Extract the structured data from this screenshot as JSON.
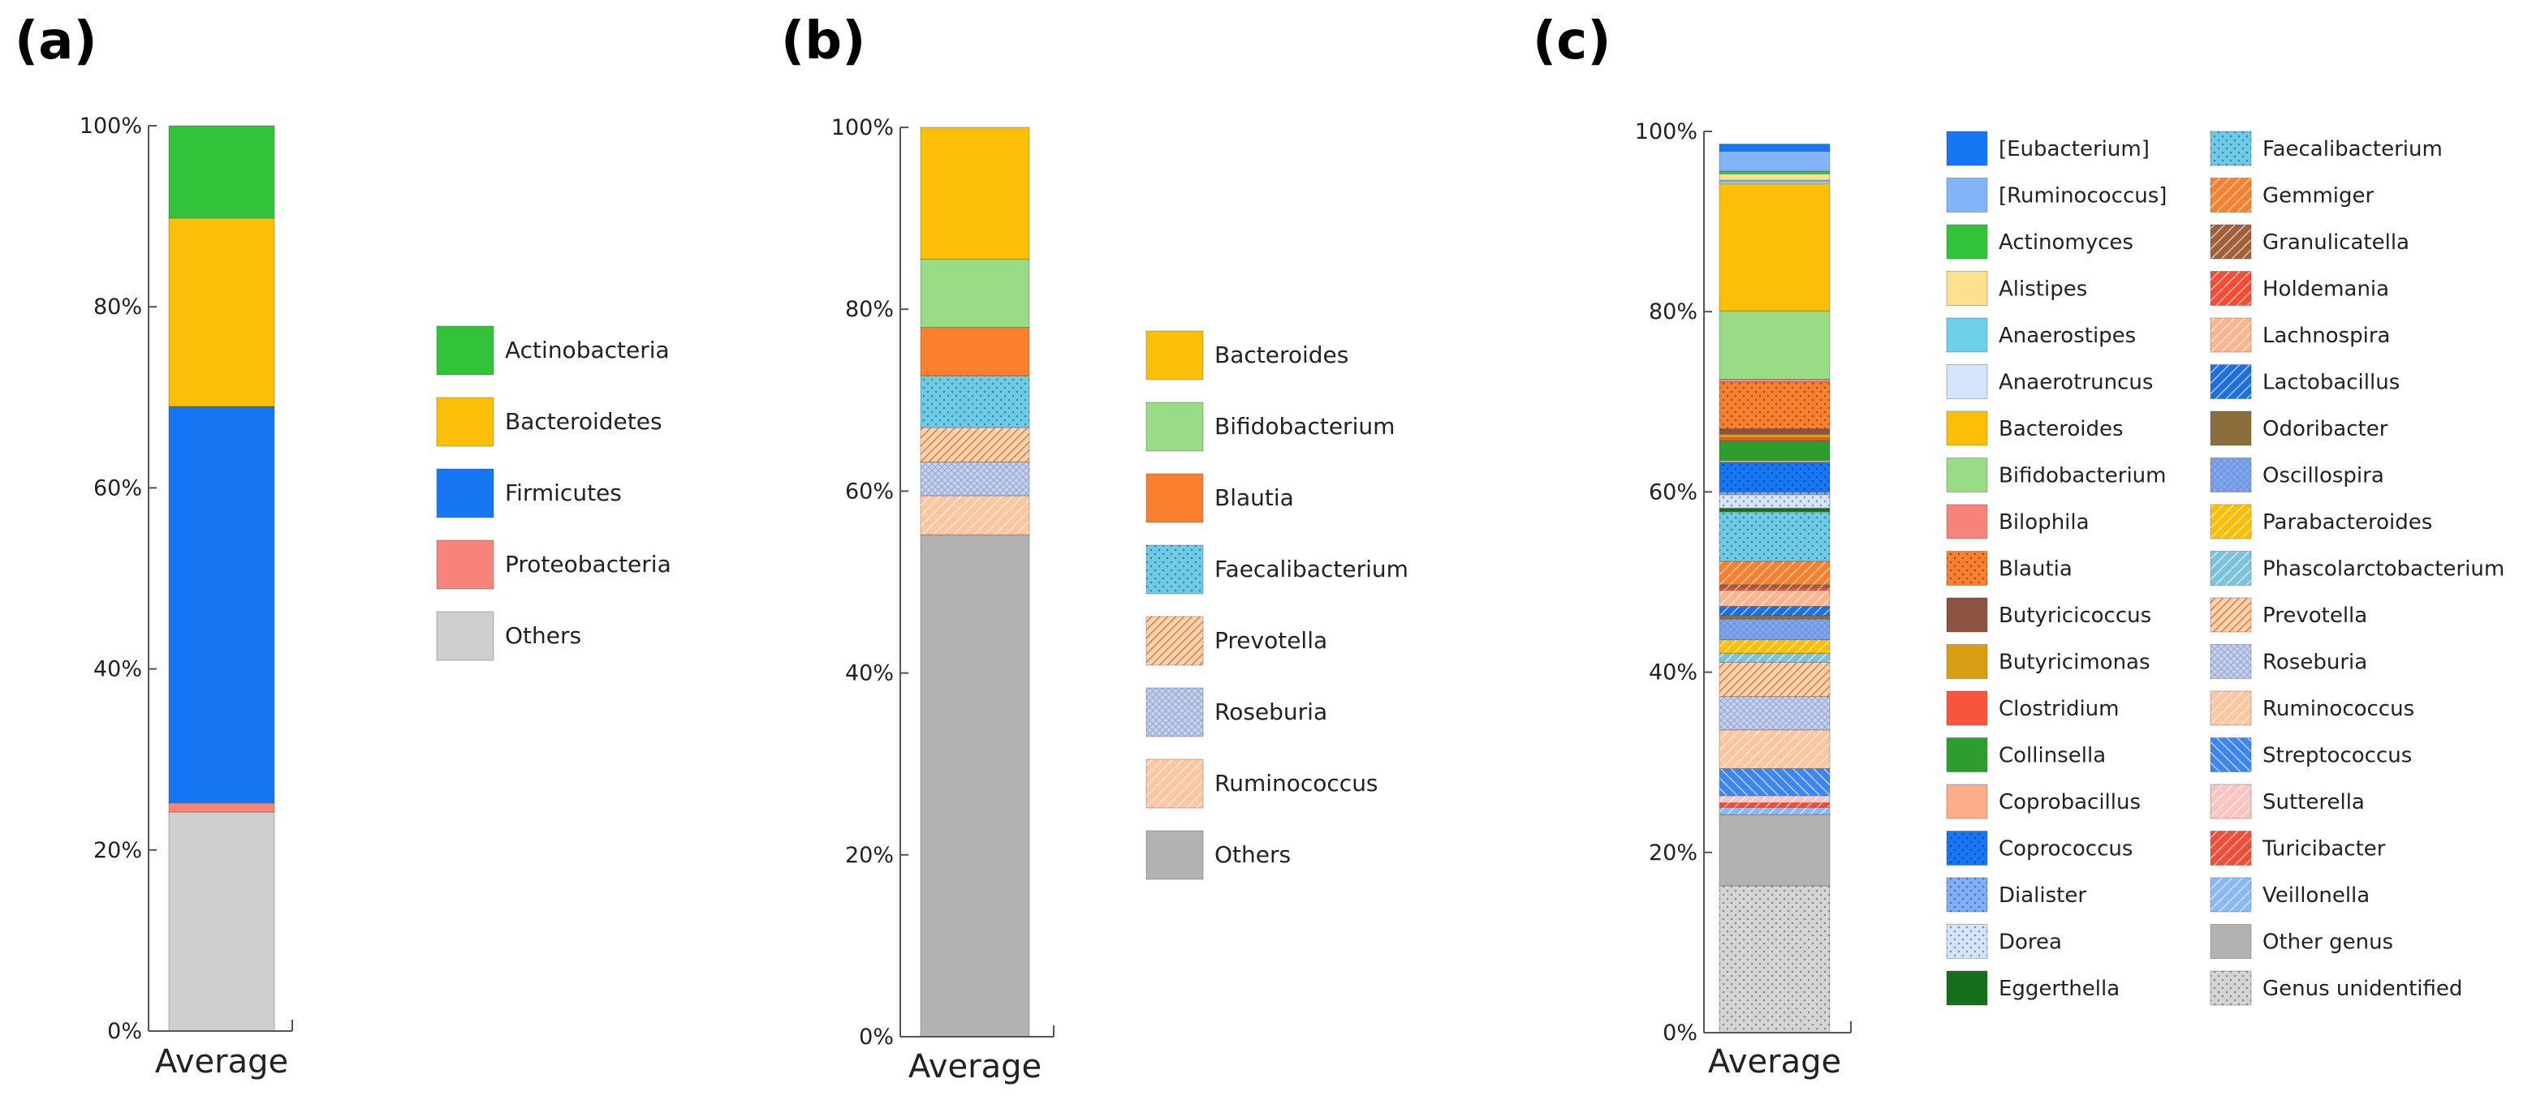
{
  "chart_data": [
    {
      "panel_label": "(a)",
      "type": "bar",
      "stacked": true,
      "normalized_percent": true,
      "categories": [
        "Average"
      ],
      "ylim": [
        0,
        100
      ],
      "yticks": [
        "0%",
        "20%",
        "40%",
        "60%",
        "80%",
        "100%"
      ],
      "legend_position": "right",
      "series": [
        {
          "name": "Actinobacteria",
          "values": [
            10.2
          ],
          "color": "#33c33a",
          "pattern": "solid"
        },
        {
          "name": "Bacteroidetes",
          "values": [
            20.8
          ],
          "color": "#fbbf08",
          "pattern": "solid"
        },
        {
          "name": "Firmicutes",
          "values": [
            43.8
          ],
          "color": "#1577f4",
          "pattern": "solid"
        },
        {
          "name": "Proteobacteria",
          "values": [
            1.0
          ],
          "color": "#f7847a",
          "pattern": "solid"
        },
        {
          "name": "Others",
          "values": [
            24.2
          ],
          "color": "#cfcfcf",
          "pattern": "solid"
        }
      ]
    },
    {
      "panel_label": "(b)",
      "type": "bar",
      "stacked": true,
      "normalized_percent": true,
      "categories": [
        "Average"
      ],
      "ylim": [
        0,
        100
      ],
      "yticks": [
        "0%",
        "20%",
        "40%",
        "60%",
        "80%",
        "100%"
      ],
      "legend_position": "right",
      "series": [
        {
          "name": "Bacteroides",
          "values": [
            14.5
          ],
          "color": "#fbbf08",
          "pattern": "solid"
        },
        {
          "name": "Bifidobacterium",
          "values": [
            7.5
          ],
          "color": "#99dc85",
          "pattern": "solid"
        },
        {
          "name": "Blautia",
          "values": [
            5.3
          ],
          "color": "#f8802f",
          "pattern": "solid"
        },
        {
          "name": "Faecalibacterium",
          "values": [
            5.7
          ],
          "color": "#6dcbe8",
          "pattern": "dots"
        },
        {
          "name": "Prevotella",
          "values": [
            3.8
          ],
          "color": "#fbd3b0",
          "pattern": "hatch-dense"
        },
        {
          "name": "Roseburia",
          "values": [
            3.7
          ],
          "color": "#c4d0ec",
          "pattern": "crosshatch"
        },
        {
          "name": "Ruminococcus",
          "values": [
            4.3
          ],
          "color": "#fbc6a0",
          "pattern": "hatch"
        },
        {
          "name": "Others",
          "values": [
            55.2
          ],
          "color": "#b2b2b2",
          "pattern": "solid"
        }
      ]
    },
    {
      "panel_label": "(c)",
      "type": "bar",
      "stacked": true,
      "normalized_percent": true,
      "categories": [
        "Average"
      ],
      "ylim": [
        0,
        100
      ],
      "yticks": [
        "0%",
        "20%",
        "40%",
        "60%",
        "80%",
        "100%"
      ],
      "legend_position": "right",
      "series": [
        {
          "name": "[Eubacterium]",
          "values": [
            0.8
          ],
          "color": "#1577f4",
          "pattern": "solid"
        },
        {
          "name": "[Ruminococcus]",
          "values": [
            2.2
          ],
          "color": "#82b4f7",
          "pattern": "solid"
        },
        {
          "name": "Actinomyces",
          "values": [
            0.3
          ],
          "color": "#33c33a",
          "pattern": "solid"
        },
        {
          "name": "Alistipes",
          "values": [
            0.7
          ],
          "color": "#ffe08f",
          "pattern": "solid"
        },
        {
          "name": "Anaerostipes",
          "values": [
            0.2
          ],
          "color": "#6fd0ea",
          "pattern": "solid"
        },
        {
          "name": "Anaerotruncus",
          "values": [
            0.2
          ],
          "color": "#d3e4fb",
          "pattern": "solid"
        },
        {
          "name": "Bacteroides",
          "values": [
            14.1
          ],
          "color": "#fbbf08",
          "pattern": "solid"
        },
        {
          "name": "Bifidobacterium",
          "values": [
            7.6
          ],
          "color": "#99dc85",
          "pattern": "solid"
        },
        {
          "name": "Bilophila",
          "values": [
            0.3
          ],
          "color": "#f7847a",
          "pattern": "solid"
        },
        {
          "name": "Blautia",
          "values": [
            5.2
          ],
          "color": "#f8802f",
          "pattern": "dots"
        },
        {
          "name": "Butyricicoccus",
          "values": [
            0.6
          ],
          "color": "#8b5340",
          "pattern": "solid"
        },
        {
          "name": "Butyricimonas",
          "values": [
            0.4
          ],
          "color": "#d99e14",
          "pattern": "solid"
        },
        {
          "name": "Clostridium",
          "values": [
            0.3
          ],
          "color": "#f8553e",
          "pattern": "solid"
        },
        {
          "name": "Collinsella",
          "values": [
            2.2
          ],
          "color": "#2e9c2f",
          "pattern": "solid"
        },
        {
          "name": "Coprobacillus",
          "values": [
            0.2
          ],
          "color": "#fbae88",
          "pattern": "solid"
        },
        {
          "name": "Coprococcus",
          "values": [
            3.3
          ],
          "color": "#1577f4",
          "pattern": "dots"
        },
        {
          "name": "Dialister",
          "values": [
            0.3
          ],
          "color": "#7fb0f6",
          "pattern": "dots"
        },
        {
          "name": "Dorea",
          "values": [
            1.5
          ],
          "color": "#d3e4fb",
          "pattern": "dots"
        },
        {
          "name": "Eggerthella",
          "values": [
            0.4
          ],
          "color": "#176e1c",
          "pattern": "solid"
        },
        {
          "name": "Faecalibacterium",
          "values": [
            5.5
          ],
          "color": "#6dcbe8",
          "pattern": "dots"
        },
        {
          "name": "Gemmiger",
          "values": [
            2.6
          ],
          "color": "#f8802f",
          "pattern": "hatch"
        },
        {
          "name": "Granulicatella",
          "values": [
            0.3
          ],
          "color": "#a0603a",
          "pattern": "hatch"
        },
        {
          "name": "Holdemania",
          "values": [
            0.3
          ],
          "color": "#f54d35",
          "pattern": "hatch"
        },
        {
          "name": "Lachnospira",
          "values": [
            1.8
          ],
          "color": "#fbb690",
          "pattern": "hatch"
        },
        {
          "name": "Lactobacillus",
          "values": [
            1.0
          ],
          "color": "#1e6fe0",
          "pattern": "hatch"
        },
        {
          "name": "Odoribacter",
          "values": [
            0.4
          ],
          "color": "#8a6d3b",
          "pattern": "solid"
        },
        {
          "name": "Oscillospira",
          "values": [
            2.3
          ],
          "color": "#7ea7f0",
          "pattern": "crosshatch"
        },
        {
          "name": "Parabacteroides",
          "values": [
            1.5
          ],
          "color": "#fbbf08",
          "pattern": "hatch"
        },
        {
          "name": "Phascolarctobacterium",
          "values": [
            1.0
          ],
          "color": "#7cc3da",
          "pattern": "hatch"
        },
        {
          "name": "Prevotella",
          "values": [
            3.8
          ],
          "color": "#fbd3b0",
          "pattern": "hatch-dense"
        },
        {
          "name": "Roseburia",
          "values": [
            3.7
          ],
          "color": "#c4d0ec",
          "pattern": "crosshatch"
        },
        {
          "name": "Ruminococcus",
          "values": [
            4.3
          ],
          "color": "#fbc6a0",
          "pattern": "hatch"
        },
        {
          "name": "Streptococcus",
          "values": [
            3.0
          ],
          "color": "#3d86f0",
          "pattern": "hatch-rev"
        },
        {
          "name": "Sutterella",
          "values": [
            0.8
          ],
          "color": "#fbc4c0",
          "pattern": "hatch"
        },
        {
          "name": "Turicibacter",
          "values": [
            0.5
          ],
          "color": "#f54d35",
          "pattern": "hatch"
        },
        {
          "name": "Veillonella",
          "values": [
            0.8
          ],
          "color": "#8bb8f7",
          "pattern": "hatch"
        },
        {
          "name": "Other genus",
          "values": [
            7.9
          ],
          "color": "#b2b2b2",
          "pattern": "solid"
        },
        {
          "name": "Genus unidentified",
          "values": [
            16.3
          ],
          "color": "#d5d5d5",
          "pattern": "dots"
        }
      ]
    }
  ]
}
